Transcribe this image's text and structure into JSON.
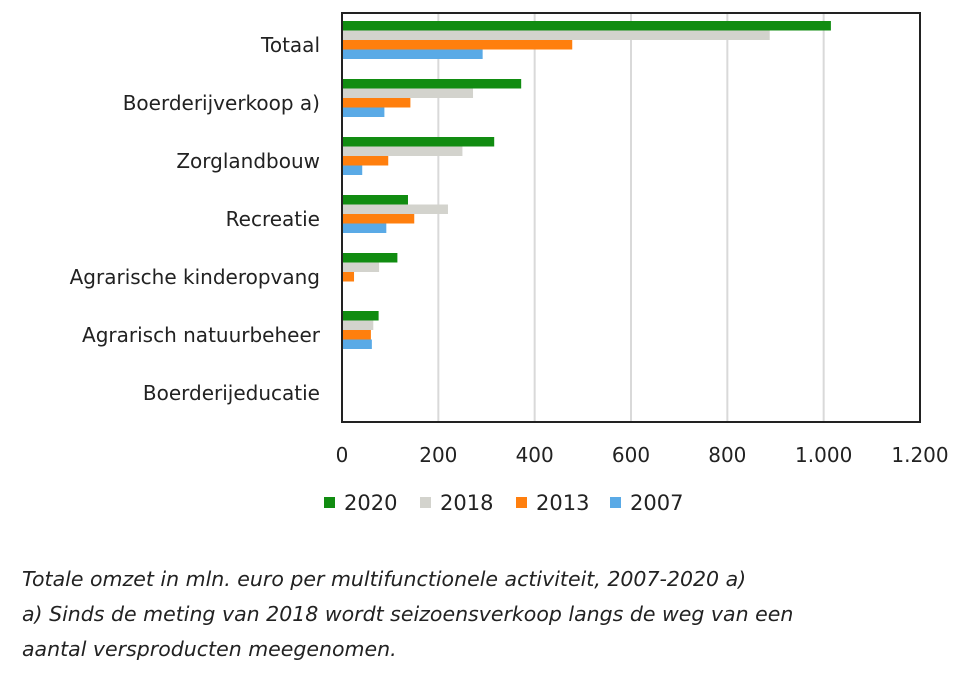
{
  "chart_data": {
    "type": "bar",
    "orientation": "horizontal",
    "categories": [
      "Totaal",
      "Boerderijverkoop a)",
      "Zorglandbouw",
      "Recreatie",
      "Agrarische kinderopvang",
      "Agrarisch natuurbeheer",
      "Boerderijeducatie"
    ],
    "series": [
      {
        "name": "2020",
        "color": "#118c11",
        "values": [
          1015,
          372,
          316,
          137,
          115,
          76,
          2
        ]
      },
      {
        "name": "2018",
        "color": "#d3d3cd",
        "values": [
          888,
          272,
          250,
          220,
          77,
          65,
          2
        ]
      },
      {
        "name": "2013",
        "color": "#ff7f0e",
        "values": [
          478,
          142,
          96,
          150,
          25,
          60,
          2
        ]
      },
      {
        "name": "2007",
        "color": "#5aaae6",
        "values": [
          292,
          88,
          42,
          92,
          0,
          62,
          2
        ]
      }
    ],
    "xlim": [
      0,
      1200
    ],
    "x_ticks": [
      0,
      200,
      400,
      600,
      800,
      1000,
      1200
    ],
    "x_tick_labels": [
      "0",
      "200",
      "400",
      "600",
      "800",
      "1.000",
      "1.200"
    ],
    "grid": "vertical",
    "legend_position": "bottom",
    "xlabel": "",
    "ylabel": ""
  },
  "caption": {
    "title": "Totale omzet in mln. euro per multifunctionele activiteit, 2007-2020 a)",
    "footnote_line1": "a) Sinds de meting van 2018 wordt seizoensverkoop langs de weg van een",
    "footnote_line2": "aantal versproducten meegenomen."
  }
}
